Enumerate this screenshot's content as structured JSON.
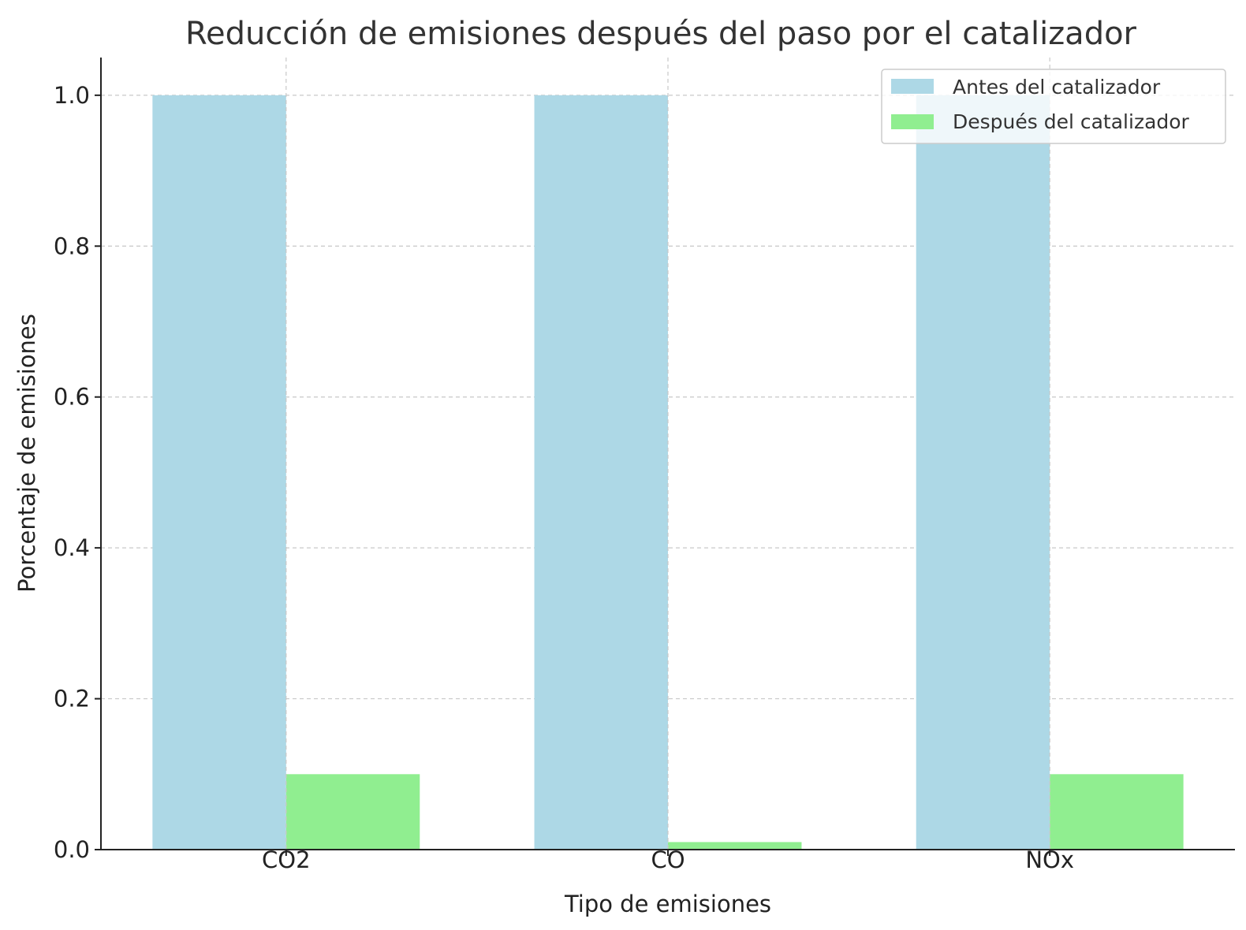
{
  "chart_data": {
    "type": "bar",
    "title": "Reducción de emisiones después del paso por el catalizador",
    "xlabel": "Tipo de emisiones",
    "ylabel": "Porcentaje de emisiones",
    "categories": [
      "CO2",
      "CO",
      "NOx"
    ],
    "series": [
      {
        "name": "Antes del catalizador",
        "values": [
          1.0,
          1.0,
          1.0
        ],
        "color": "#add8e6"
      },
      {
        "name": "Después del catalizador",
        "values": [
          0.1,
          0.01,
          0.1
        ],
        "color": "#90ee90"
      }
    ],
    "ylim": [
      0,
      1.05
    ],
    "yticks": [
      "0.0",
      "0.2",
      "0.4",
      "0.6",
      "0.8",
      "1.0"
    ],
    "grid": true,
    "legend_position": "top-right"
  }
}
